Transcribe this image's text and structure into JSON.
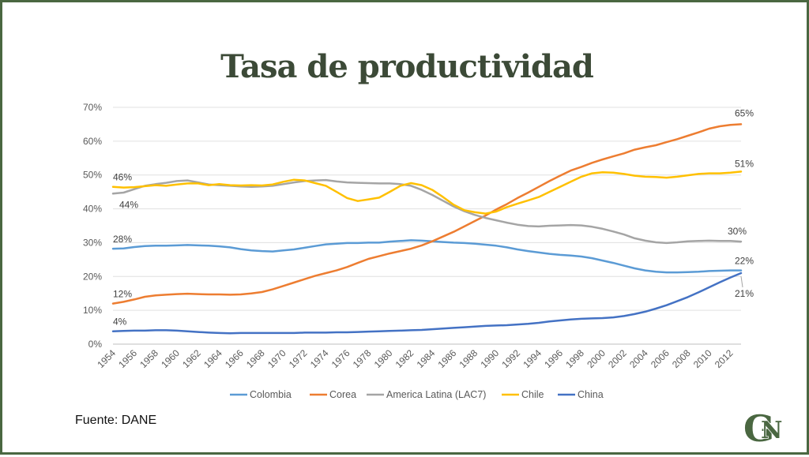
{
  "slide": {
    "title": "Tasa de productividad",
    "source": "Fuente: DANE",
    "logo_text": "GN"
  },
  "chart_data": {
    "type": "line",
    "title": "",
    "xlabel": "",
    "ylabel": "",
    "ylim": [
      0,
      70
    ],
    "y_ticks": [
      "0%",
      "10%",
      "20%",
      "30%",
      "40%",
      "50%",
      "60%",
      "70%"
    ],
    "grid": true,
    "legend_position": "bottom",
    "x": [
      1954,
      1955,
      1956,
      1957,
      1958,
      1959,
      1960,
      1961,
      1962,
      1963,
      1964,
      1965,
      1966,
      1967,
      1968,
      1969,
      1970,
      1971,
      1972,
      1973,
      1974,
      1975,
      1976,
      1977,
      1978,
      1979,
      1980,
      1981,
      1982,
      1983,
      1984,
      1985,
      1986,
      1987,
      1988,
      1989,
      1990,
      1991,
      1992,
      1993,
      1994,
      1995,
      1996,
      1997,
      1998,
      1999,
      2000,
      2001,
      2002,
      2003,
      2004,
      2005,
      2006,
      2007,
      2008,
      2009,
      2010,
      2011,
      2012,
      2013
    ],
    "x_tick_labels": [
      "1954",
      "1956",
      "1958",
      "1960",
      "1962",
      "1964",
      "1966",
      "1968",
      "1970",
      "1972",
      "1974",
      "1976",
      "1978",
      "1980",
      "1982",
      "1984",
      "1986",
      "1988",
      "1990",
      "1992",
      "1994",
      "1996",
      "1998",
      "2000",
      "2002",
      "2004",
      "2006",
      "2008",
      "2010",
      "2012"
    ],
    "series": [
      {
        "name": "Colombia",
        "color": "#5b9bd5",
        "values": [
          28.2,
          28.3,
          28.7,
          29.0,
          29.1,
          29.1,
          29.2,
          29.3,
          29.2,
          29.1,
          28.9,
          28.6,
          28.1,
          27.7,
          27.5,
          27.4,
          27.7,
          28.0,
          28.5,
          29.0,
          29.5,
          29.7,
          29.9,
          29.9,
          30.0,
          30.0,
          30.3,
          30.5,
          30.7,
          30.6,
          30.4,
          30.2,
          30.0,
          29.9,
          29.7,
          29.4,
          29.1,
          28.6,
          28.0,
          27.5,
          27.1,
          26.7,
          26.4,
          26.2,
          25.9,
          25.4,
          24.7,
          24.0,
          23.2,
          22.4,
          21.8,
          21.4,
          21.2,
          21.2,
          21.3,
          21.4,
          21.6,
          21.7,
          21.8,
          21.8
        ],
        "start_label": "28%",
        "end_label": "22%"
      },
      {
        "name": "Corea",
        "color": "#ed7d31",
        "values": [
          12.0,
          12.5,
          13.2,
          14.0,
          14.4,
          14.6,
          14.8,
          14.9,
          14.8,
          14.7,
          14.7,
          14.6,
          14.7,
          15.0,
          15.4,
          16.2,
          17.2,
          18.2,
          19.2,
          20.2,
          21.0,
          21.8,
          22.8,
          24.0,
          25.2,
          26.0,
          26.8,
          27.5,
          28.2,
          29.2,
          30.4,
          31.8,
          33.2,
          34.8,
          36.4,
          38.0,
          39.8,
          41.4,
          43.2,
          44.8,
          46.5,
          48.2,
          49.8,
          51.3,
          52.4,
          53.6,
          54.6,
          55.5,
          56.4,
          57.5,
          58.2,
          58.8,
          59.7,
          60.6,
          61.6,
          62.6,
          63.7,
          64.4,
          64.8,
          65.0
        ],
        "start_label": "12%",
        "end_label": "65%"
      },
      {
        "name": "America Latina (LAC7)",
        "color": "#a5a5a5",
        "values": [
          44.5,
          44.8,
          45.8,
          46.8,
          47.3,
          47.7,
          48.2,
          48.4,
          47.8,
          47.2,
          47.0,
          46.8,
          46.6,
          46.5,
          46.6,
          46.8,
          47.3,
          47.8,
          48.2,
          48.4,
          48.5,
          48.1,
          47.8,
          47.7,
          47.6,
          47.5,
          47.5,
          47.3,
          46.8,
          45.6,
          44.1,
          42.4,
          40.7,
          39.3,
          38.2,
          37.3,
          36.6,
          35.9,
          35.3,
          34.9,
          34.8,
          35.0,
          35.1,
          35.2,
          35.1,
          34.7,
          34.1,
          33.3,
          32.4,
          31.3,
          30.6,
          30.1,
          29.9,
          30.1,
          30.4,
          30.5,
          30.6,
          30.5,
          30.5,
          30.3
        ],
        "start_label": "44%",
        "end_label": "30%"
      },
      {
        "name": "Chile",
        "color": "#ffc000",
        "values": [
          46.5,
          46.3,
          46.4,
          46.7,
          47.0,
          46.8,
          47.2,
          47.5,
          47.5,
          47.0,
          47.3,
          47.0,
          46.9,
          47.0,
          46.9,
          47.2,
          48.0,
          48.6,
          48.4,
          47.6,
          46.8,
          45.0,
          43.2,
          42.3,
          42.8,
          43.3,
          45.0,
          46.8,
          47.6,
          47.0,
          45.6,
          43.5,
          41.2,
          39.6,
          39.0,
          38.6,
          39.2,
          40.5,
          41.5,
          42.5,
          43.5,
          45.0,
          46.5,
          48.0,
          49.5,
          50.5,
          50.8,
          50.7,
          50.3,
          49.8,
          49.5,
          49.4,
          49.2,
          49.5,
          49.9,
          50.3,
          50.5,
          50.5,
          50.7,
          51.0
        ],
        "start_label": "46%",
        "end_label": "51%"
      },
      {
        "name": "China",
        "color": "#4472c4",
        "values": [
          3.8,
          3.9,
          4.0,
          4.0,
          4.1,
          4.1,
          4.0,
          3.8,
          3.6,
          3.4,
          3.3,
          3.2,
          3.3,
          3.3,
          3.3,
          3.3,
          3.3,
          3.3,
          3.4,
          3.4,
          3.4,
          3.5,
          3.5,
          3.6,
          3.7,
          3.8,
          3.9,
          4.0,
          4.1,
          4.2,
          4.4,
          4.6,
          4.8,
          5.0,
          5.2,
          5.4,
          5.5,
          5.6,
          5.8,
          6.0,
          6.3,
          6.7,
          7.0,
          7.3,
          7.5,
          7.6,
          7.7,
          7.9,
          8.3,
          8.9,
          9.6,
          10.5,
          11.5,
          12.7,
          13.9,
          15.3,
          16.8,
          18.3,
          19.7,
          21.0
        ],
        "start_label": "4%",
        "end_label": "21%"
      }
    ]
  }
}
